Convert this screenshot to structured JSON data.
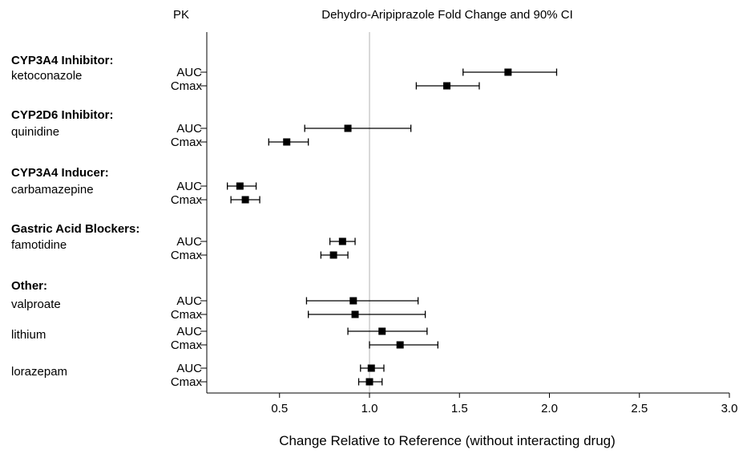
{
  "pk_label": "PK",
  "title": "Dehydro-Aripiprazole Fold Change and 90% CI",
  "xlabel": "Change Relative to Reference (without interacting drug)",
  "chart_data": {
    "type": "forest",
    "title": "Dehydro-Aripiprazole Fold Change and 90% CI",
    "xlabel": "Change Relative to Reference (without interacting drug)",
    "x_axis": {
      "ticks": [
        0.5,
        1.0,
        1.5,
        2.0,
        2.5,
        3.0
      ],
      "tick_labels": [
        "0.5",
        "1.0",
        "1.5",
        "2.0",
        "2.5",
        "3.0"
      ],
      "range": [
        0.1,
        3.0
      ],
      "reference_line": 1.0
    },
    "legend": "none",
    "groups": [
      {
        "header": "CYP3A4 Inhibitor:",
        "drugs": [
          {
            "name": "ketoconazole",
            "rows": [
              {
                "metric": "AUC",
                "value": 1.77,
                "ci_low": 1.52,
                "ci_high": 2.04
              },
              {
                "metric": "Cmax",
                "value": 1.43,
                "ci_low": 1.26,
                "ci_high": 1.61
              }
            ]
          }
        ]
      },
      {
        "header": "CYP2D6 Inhibitor:",
        "drugs": [
          {
            "name": "quinidine",
            "rows": [
              {
                "metric": "AUC",
                "value": 0.88,
                "ci_low": 0.64,
                "ci_high": 1.23
              },
              {
                "metric": "Cmax",
                "value": 0.54,
                "ci_low": 0.44,
                "ci_high": 0.66
              }
            ]
          }
        ]
      },
      {
        "header": "CYP3A4 Inducer:",
        "drugs": [
          {
            "name": "carbamazepine",
            "rows": [
              {
                "metric": "AUC",
                "value": 0.28,
                "ci_low": 0.21,
                "ci_high": 0.37
              },
              {
                "metric": "Cmax",
                "value": 0.31,
                "ci_low": 0.23,
                "ci_high": 0.39
              }
            ]
          }
        ]
      },
      {
        "header": "Gastric Acid Blockers:",
        "drugs": [
          {
            "name": "famotidine",
            "rows": [
              {
                "metric": "AUC",
                "value": 0.85,
                "ci_low": 0.78,
                "ci_high": 0.92
              },
              {
                "metric": "Cmax",
                "value": 0.8,
                "ci_low": 0.73,
                "ci_high": 0.88
              }
            ]
          }
        ]
      },
      {
        "header": "Other:",
        "drugs": [
          {
            "name": "valproate",
            "rows": [
              {
                "metric": "AUC",
                "value": 0.91,
                "ci_low": 0.65,
                "ci_high": 1.27
              },
              {
                "metric": "Cmax",
                "value": 0.92,
                "ci_low": 0.66,
                "ci_high": 1.31
              }
            ]
          },
          {
            "name": "lithium",
            "rows": [
              {
                "metric": "AUC",
                "value": 1.07,
                "ci_low": 0.88,
                "ci_high": 1.32
              },
              {
                "metric": "Cmax",
                "value": 1.17,
                "ci_low": 1.0,
                "ci_high": 1.38
              }
            ]
          },
          {
            "name": "lorazepam",
            "rows": [
              {
                "metric": "AUC",
                "value": 1.01,
                "ci_low": 0.95,
                "ci_high": 1.08
              },
              {
                "metric": "Cmax",
                "value": 1.0,
                "ci_low": 0.94,
                "ci_high": 1.07
              }
            ]
          }
        ]
      }
    ],
    "colors": {
      "marker": "#000000",
      "reference_line": "#b3b3b3",
      "axis": "#000000",
      "background": "#ffffff"
    }
  }
}
